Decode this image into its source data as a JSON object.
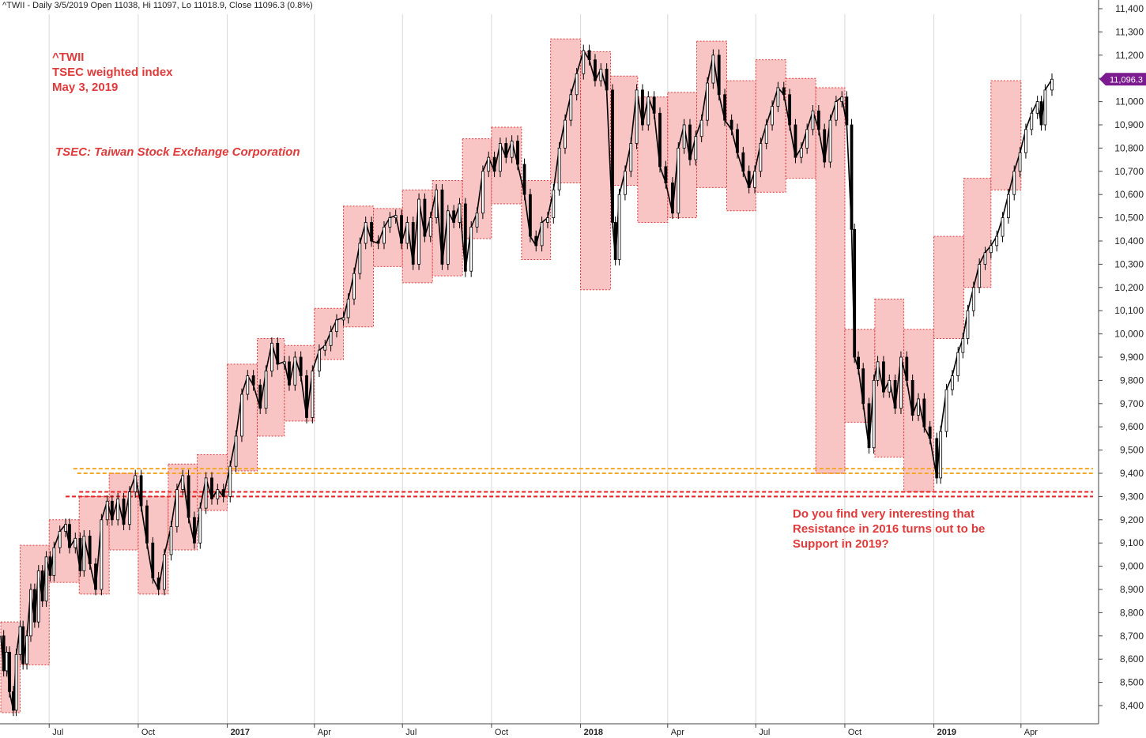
{
  "header": {
    "text": "^TWII - Daily 3/5/2019 Open 11038, Hi 11097, Lo 11018.9, Close 11096.3 (0.8%)"
  },
  "annotations": {
    "title_lines": [
      "^TWII",
      "TSEC weighted index",
      "May 3, 2019"
    ],
    "subtitle": "TSEC: Taiwan Stock Exchange Corporation",
    "note_lines": [
      "Do you find very interesting that",
      "Resistance in 2016 turns out to be",
      "Support in 2019?"
    ]
  },
  "colors": {
    "box_fill": "#f9c4c4",
    "box_stroke": "#e03a3a",
    "candle": "#000000",
    "orange_line": "#f5a623",
    "red_line": "#e82020",
    "last_label_bg": "#7b1b8f",
    "grid": "#d8d8d8"
  },
  "chart_data": {
    "type": "line",
    "series_style": "candlestick (daily OHLC), approximated as a close-price path",
    "y_axis": {
      "position": "right",
      "range": [
        8350,
        11450
      ],
      "tick_labels": [
        "8,400",
        "8,500",
        "8,600",
        "8,700",
        "8,800",
        "8,900",
        "9,000",
        "9,100",
        "9,200",
        "9,300",
        "9,400",
        "9,500",
        "9,600",
        "9,700",
        "9,800",
        "9,900",
        "10,000",
        "10,100",
        "10,200",
        "10,300",
        "10,400",
        "10,500",
        "10,600",
        "10,700",
        "10,800",
        "10,900",
        "11,000",
        "11,100",
        "11,200",
        "11,300",
        "11,400"
      ]
    },
    "x_axis": {
      "range": [
        "2016-05-12",
        "2019-05-30"
      ],
      "ticks": [
        {
          "label": "Jul",
          "date": "2016-07-01",
          "bold": false
        },
        {
          "label": "Oct",
          "date": "2016-10-01",
          "bold": false
        },
        {
          "label": "2017",
          "date": "2017-01-01",
          "bold": true
        },
        {
          "label": "Apr",
          "date": "2017-04-01",
          "bold": false
        },
        {
          "label": "Jul",
          "date": "2017-07-01",
          "bold": false
        },
        {
          "label": "Oct",
          "date": "2017-10-01",
          "bold": false
        },
        {
          "label": "2018",
          "date": "2018-01-01",
          "bold": true
        },
        {
          "label": "Apr",
          "date": "2018-04-01",
          "bold": false
        },
        {
          "label": "Jul",
          "date": "2018-07-01",
          "bold": false
        },
        {
          "label": "Oct",
          "date": "2018-10-01",
          "bold": false
        },
        {
          "label": "2019",
          "date": "2019-01-01",
          "bold": true
        },
        {
          "label": "Apr",
          "date": "2019-04-01",
          "bold": false
        }
      ]
    },
    "grid": "vertical lines at tick dates",
    "last_value_label": "11,096.3",
    "last_value": 11096.3,
    "monthly_boxes": [
      {
        "start": "2016-05-12",
        "end": "2016-06-01",
        "low": 8370,
        "high": 8760
      },
      {
        "start": "2016-06-01",
        "end": "2016-07-01",
        "low": 8575,
        "high": 9090
      },
      {
        "start": "2016-07-01",
        "end": "2016-08-01",
        "low": 8930,
        "high": 9200
      },
      {
        "start": "2016-08-01",
        "end": "2016-09-01",
        "low": 8880,
        "high": 9300
      },
      {
        "start": "2016-09-01",
        "end": "2016-10-01",
        "low": 9070,
        "high": 9400
      },
      {
        "start": "2016-10-01",
        "end": "2016-11-01",
        "low": 8880,
        "high": 9300
      },
      {
        "start": "2016-11-01",
        "end": "2016-12-01",
        "low": 9070,
        "high": 9440
      },
      {
        "start": "2016-12-01",
        "end": "2017-01-01",
        "low": 9240,
        "high": 9480
      },
      {
        "start": "2017-01-01",
        "end": "2017-02-01",
        "low": 9410,
        "high": 9870
      },
      {
        "start": "2017-02-01",
        "end": "2017-03-01",
        "low": 9560,
        "high": 9980
      },
      {
        "start": "2017-03-01",
        "end": "2017-04-01",
        "low": 9625,
        "high": 9950
      },
      {
        "start": "2017-04-01",
        "end": "2017-05-01",
        "low": 9890,
        "high": 10110
      },
      {
        "start": "2017-05-01",
        "end": "2017-06-01",
        "low": 10030,
        "high": 10550
      },
      {
        "start": "2017-06-01",
        "end": "2017-07-01",
        "low": 10290,
        "high": 10540
      },
      {
        "start": "2017-07-01",
        "end": "2017-08-01",
        "low": 10220,
        "high": 10620
      },
      {
        "start": "2017-08-01",
        "end": "2017-09-01",
        "low": 10250,
        "high": 10660
      },
      {
        "start": "2017-09-01",
        "end": "2017-10-01",
        "low": 10410,
        "high": 10840
      },
      {
        "start": "2017-10-01",
        "end": "2017-11-01",
        "low": 10560,
        "high": 10890
      },
      {
        "start": "2017-11-01",
        "end": "2017-12-01",
        "low": 10320,
        "high": 10660
      },
      {
        "start": "2017-12-01",
        "end": "2018-01-01",
        "low": 10650,
        "high": 11270
      },
      {
        "start": "2018-01-01",
        "end": "2018-02-01",
        "low": 10190,
        "high": 11215
      },
      {
        "start": "2018-02-01",
        "end": "2018-03-01",
        "low": 10640,
        "high": 11110
      },
      {
        "start": "2018-03-01",
        "end": "2018-04-01",
        "low": 10480,
        "high": 11020
      },
      {
        "start": "2018-04-01",
        "end": "2018-05-01",
        "low": 10500,
        "high": 11040
      },
      {
        "start": "2018-05-01",
        "end": "2018-06-01",
        "low": 10630,
        "high": 11260
      },
      {
        "start": "2018-06-01",
        "end": "2018-07-01",
        "low": 10530,
        "high": 11090
      },
      {
        "start": "2018-07-01",
        "end": "2018-08-01",
        "low": 10610,
        "high": 11180
      },
      {
        "start": "2018-08-01",
        "end": "2018-09-01",
        "low": 10670,
        "high": 11100
      },
      {
        "start": "2018-09-01",
        "end": "2018-10-01",
        "low": 9400,
        "high": 11060
      },
      {
        "start": "2018-10-01",
        "end": "2018-11-01",
        "low": 9620,
        "high": 10020
      },
      {
        "start": "2018-11-01",
        "end": "2018-12-01",
        "low": 9470,
        "high": 10150
      },
      {
        "start": "2018-12-01",
        "end": "2019-01-01",
        "low": 9320,
        "high": 10020
      },
      {
        "start": "2019-01-01",
        "end": "2019-02-01",
        "low": 9980,
        "high": 10420
      },
      {
        "start": "2019-02-01",
        "end": "2019-03-01",
        "low": 10200,
        "high": 10670
      },
      {
        "start": "2019-03-01",
        "end": "2019-04-01",
        "low": 10620,
        "high": 11090
      }
    ],
    "horizontal_lines": [
      {
        "value": 9420,
        "color": "orange",
        "style": "dashed",
        "from": "2016-07-26"
      },
      {
        "value": 9400,
        "color": "orange",
        "style": "dashed",
        "from": "2016-07-30"
      },
      {
        "value": 9320,
        "color": "red",
        "style": "dashed",
        "from": "2016-08-01"
      },
      {
        "value": 9300,
        "color": "red",
        "style": "dashed",
        "from": "2016-07-18"
      }
    ],
    "close_path": [
      [
        "2016-05-12",
        8700
      ],
      [
        "2016-05-15",
        8550
      ],
      [
        "2016-05-18",
        8630
      ],
      [
        "2016-05-21",
        8460
      ],
      [
        "2016-05-25",
        8380
      ],
      [
        "2016-05-28",
        8620
      ],
      [
        "2016-06-01",
        8740
      ],
      [
        "2016-06-04",
        8580
      ],
      [
        "2016-06-08",
        8700
      ],
      [
        "2016-06-12",
        8900
      ],
      [
        "2016-06-16",
        8760
      ],
      [
        "2016-06-20",
        8980
      ],
      [
        "2016-06-24",
        8850
      ],
      [
        "2016-06-28",
        9040
      ],
      [
        "2016-07-02",
        8960
      ],
      [
        "2016-07-06",
        9080
      ],
      [
        "2016-07-12",
        9150
      ],
      [
        "2016-07-18",
        9180
      ],
      [
        "2016-07-22",
        9080
      ],
      [
        "2016-07-28",
        9120
      ],
      [
        "2016-08-02",
        8980
      ],
      [
        "2016-08-06",
        9130
      ],
      [
        "2016-08-12",
        9010
      ],
      [
        "2016-08-18",
        8900
      ],
      [
        "2016-08-24",
        9200
      ],
      [
        "2016-08-30",
        9280
      ],
      [
        "2016-09-04",
        9200
      ],
      [
        "2016-09-10",
        9290
      ],
      [
        "2016-09-16",
        9180
      ],
      [
        "2016-09-22",
        9320
      ],
      [
        "2016-09-28",
        9390
      ],
      [
        "2016-10-04",
        9260
      ],
      [
        "2016-10-10",
        9100
      ],
      [
        "2016-10-16",
        8950
      ],
      [
        "2016-10-22",
        8900
      ],
      [
        "2016-10-28",
        9050
      ],
      [
        "2016-11-04",
        9170
      ],
      [
        "2016-11-10",
        9330
      ],
      [
        "2016-11-16",
        9390
      ],
      [
        "2016-11-22",
        9210
      ],
      [
        "2016-11-28",
        9100
      ],
      [
        "2016-12-04",
        9250
      ],
      [
        "2016-12-10",
        9380
      ],
      [
        "2016-12-16",
        9290
      ],
      [
        "2016-12-22",
        9330
      ],
      [
        "2016-12-28",
        9300
      ],
      [
        "2017-01-04",
        9430
      ],
      [
        "2017-01-10",
        9560
      ],
      [
        "2017-01-16",
        9740
      ],
      [
        "2017-01-22",
        9820
      ],
      [
        "2017-01-28",
        9780
      ],
      [
        "2017-02-04",
        9680
      ],
      [
        "2017-02-10",
        9840
      ],
      [
        "2017-02-16",
        9960
      ],
      [
        "2017-02-22",
        9870
      ],
      [
        "2017-03-01",
        9880
      ],
      [
        "2017-03-06",
        9780
      ],
      [
        "2017-03-12",
        9900
      ],
      [
        "2017-03-18",
        9820
      ],
      [
        "2017-03-24",
        9640
      ],
      [
        "2017-03-30",
        9840
      ],
      [
        "2017-04-06",
        9930
      ],
      [
        "2017-04-12",
        9950
      ],
      [
        "2017-04-18",
        10010
      ],
      [
        "2017-04-24",
        10060
      ],
      [
        "2017-05-01",
        10070
      ],
      [
        "2017-05-06",
        10150
      ],
      [
        "2017-05-12",
        10260
      ],
      [
        "2017-05-18",
        10390
      ],
      [
        "2017-05-24",
        10480
      ],
      [
        "2017-05-30",
        10400
      ],
      [
        "2017-06-06",
        10390
      ],
      [
        "2017-06-12",
        10460
      ],
      [
        "2017-06-18",
        10500
      ],
      [
        "2017-06-24",
        10510
      ],
      [
        "2017-06-30",
        10390
      ],
      [
        "2017-07-06",
        10480
      ],
      [
        "2017-07-12",
        10300
      ],
      [
        "2017-07-18",
        10580
      ],
      [
        "2017-07-24",
        10420
      ],
      [
        "2017-07-30",
        10500
      ],
      [
        "2017-08-05",
        10620
      ],
      [
        "2017-08-11",
        10300
      ],
      [
        "2017-08-17",
        10530
      ],
      [
        "2017-08-23",
        10480
      ],
      [
        "2017-08-29",
        10560
      ],
      [
        "2017-09-04",
        10270
      ],
      [
        "2017-09-10",
        10460
      ],
      [
        "2017-09-16",
        10520
      ],
      [
        "2017-09-22",
        10700
      ],
      [
        "2017-09-28",
        10760
      ],
      [
        "2017-10-04",
        10700
      ],
      [
        "2017-10-10",
        10820
      ],
      [
        "2017-10-16",
        10760
      ],
      [
        "2017-10-22",
        10830
      ],
      [
        "2017-10-28",
        10730
      ],
      [
        "2017-11-04",
        10600
      ],
      [
        "2017-11-10",
        10420
      ],
      [
        "2017-11-16",
        10380
      ],
      [
        "2017-11-22",
        10480
      ],
      [
        "2017-11-28",
        10500
      ],
      [
        "2017-12-04",
        10620
      ],
      [
        "2017-12-10",
        10800
      ],
      [
        "2017-12-16",
        10920
      ],
      [
        "2017-12-22",
        11030
      ],
      [
        "2017-12-28",
        11120
      ],
      [
        "2018-01-04",
        11220
      ],
      [
        "2018-01-10",
        11180
      ],
      [
        "2018-01-16",
        11090
      ],
      [
        "2018-01-22",
        11140
      ],
      [
        "2018-01-28",
        11050
      ],
      [
        "2018-02-03",
        10480
      ],
      [
        "2018-02-06",
        10320
      ],
      [
        "2018-02-10",
        10600
      ],
      [
        "2018-02-16",
        10700
      ],
      [
        "2018-02-22",
        10820
      ],
      [
        "2018-02-28",
        11050
      ],
      [
        "2018-03-06",
        10900
      ],
      [
        "2018-03-12",
        11020
      ],
      [
        "2018-03-18",
        10950
      ],
      [
        "2018-03-24",
        10720
      ],
      [
        "2018-03-30",
        10650
      ],
      [
        "2018-04-06",
        10520
      ],
      [
        "2018-04-12",
        10800
      ],
      [
        "2018-04-18",
        10900
      ],
      [
        "2018-04-24",
        10750
      ],
      [
        "2018-04-30",
        10850
      ],
      [
        "2018-05-06",
        10920
      ],
      [
        "2018-05-12",
        11080
      ],
      [
        "2018-05-18",
        11200
      ],
      [
        "2018-05-24",
        11030
      ],
      [
        "2018-05-30",
        10920
      ],
      [
        "2018-06-06",
        10880
      ],
      [
        "2018-06-12",
        10780
      ],
      [
        "2018-06-18",
        10700
      ],
      [
        "2018-06-24",
        10630
      ],
      [
        "2018-06-30",
        10700
      ],
      [
        "2018-07-06",
        10820
      ],
      [
        "2018-07-12",
        10900
      ],
      [
        "2018-07-18",
        10980
      ],
      [
        "2018-07-24",
        11060
      ],
      [
        "2018-07-30",
        11030
      ],
      [
        "2018-08-05",
        10900
      ],
      [
        "2018-08-11",
        10760
      ],
      [
        "2018-08-17",
        10800
      ],
      [
        "2018-08-23",
        10880
      ],
      [
        "2018-08-29",
        10960
      ],
      [
        "2018-09-04",
        10880
      ],
      [
        "2018-09-10",
        10740
      ],
      [
        "2018-09-16",
        10920
      ],
      [
        "2018-09-22",
        11000
      ],
      [
        "2018-09-28",
        11020
      ],
      [
        "2018-10-03",
        10900
      ],
      [
        "2018-10-08",
        10450
      ],
      [
        "2018-10-11",
        9900
      ],
      [
        "2018-10-15",
        9850
      ],
      [
        "2018-10-20",
        9700
      ],
      [
        "2018-10-26",
        9510
      ],
      [
        "2018-10-31",
        9800
      ],
      [
        "2018-11-04",
        9880
      ],
      [
        "2018-11-10",
        9750
      ],
      [
        "2018-11-16",
        9800
      ],
      [
        "2018-11-22",
        9680
      ],
      [
        "2018-11-28",
        9900
      ],
      [
        "2018-12-04",
        9800
      ],
      [
        "2018-12-10",
        9650
      ],
      [
        "2018-12-16",
        9720
      ],
      [
        "2018-12-22",
        9600
      ],
      [
        "2018-12-28",
        9550
      ],
      [
        "2019-01-04",
        9380
      ],
      [
        "2019-01-08",
        9580
      ],
      [
        "2019-01-14",
        9760
      ],
      [
        "2019-01-20",
        9820
      ],
      [
        "2019-01-26",
        9920
      ],
      [
        "2019-01-31",
        9980
      ],
      [
        "2019-02-05",
        10100
      ],
      [
        "2019-02-11",
        10200
      ],
      [
        "2019-02-17",
        10300
      ],
      [
        "2019-02-23",
        10350
      ],
      [
        "2019-03-01",
        10380
      ],
      [
        "2019-03-07",
        10420
      ],
      [
        "2019-03-13",
        10500
      ],
      [
        "2019-03-19",
        10600
      ],
      [
        "2019-03-25",
        10700
      ],
      [
        "2019-03-31",
        10780
      ],
      [
        "2019-04-06",
        10880
      ],
      [
        "2019-04-12",
        10950
      ],
      [
        "2019-04-18",
        11000
      ],
      [
        "2019-04-22",
        10900
      ],
      [
        "2019-04-26",
        11050
      ],
      [
        "2019-05-03",
        11096.3
      ]
    ]
  }
}
